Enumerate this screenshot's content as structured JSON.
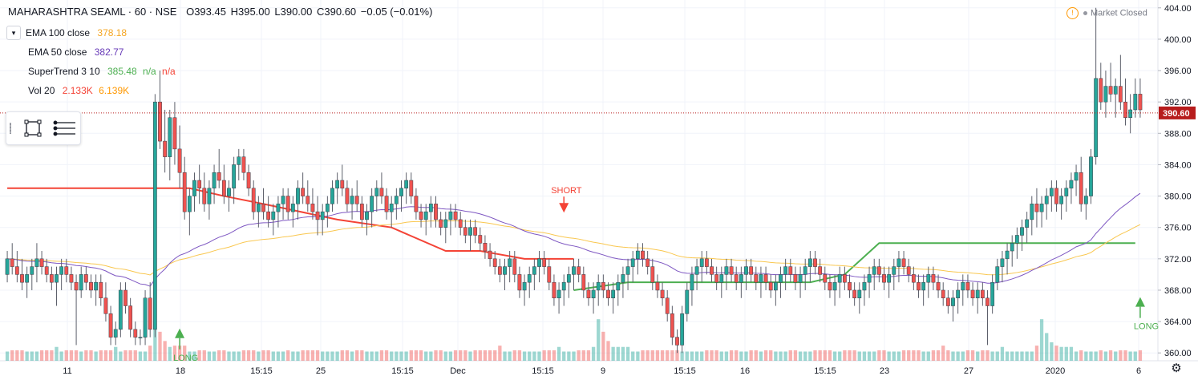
{
  "header": {
    "symbol": "MAHARASHTRA SEAML · 60 · NSE",
    "open": "O393.45",
    "high": "H395.00",
    "low": "L390.00",
    "close": "C390.60",
    "change": "−0.05 (−0.01%)"
  },
  "indicators": [
    {
      "label": "EMA 100 close",
      "value": "378.18",
      "color": "#f5a623"
    },
    {
      "label": "EMA 50 close",
      "value": "382.77",
      "color": "#673ab7"
    },
    {
      "label": "SuperTrend 3 10",
      "value": "385.48",
      "extra": "n/a",
      "extra2": "n/a",
      "color": "#4caf50",
      "color2": "#f44336"
    },
    {
      "label": "Vol 20",
      "value": "2.133K",
      "extra": "6.139K",
      "color": "#f44336",
      "color2": "#ff9800"
    }
  ],
  "market_status": "Market Closed",
  "colors": {
    "up": "#26a69a",
    "down": "#ef5350",
    "supertrend_up": "#4caf50",
    "supertrend_down": "#f44336",
    "ema50": "#7e57c2",
    "ema100": "#f9c74f",
    "price_line": "#b71c1c",
    "grid": "#f0f3fa"
  },
  "chart_data": {
    "type": "candlestick",
    "ylim": [
      359,
      405
    ],
    "y_ticks": [
      "404.00",
      "400.00",
      "396.00",
      "392.00",
      "388.00",
      "384.00",
      "380.00",
      "376.00",
      "372.00",
      "368.00",
      "364.00",
      "360.00"
    ],
    "x_ticks": [
      "11",
      "18",
      "15:15",
      "25",
      "15:15",
      "Dec",
      "15:15",
      "9",
      "15:15",
      "16",
      "15:15",
      "23",
      "27",
      "2020",
      "6"
    ],
    "last_price": "390.60",
    "annotations": [
      {
        "text": "LONG",
        "x_index": 35,
        "price": 362.5,
        "type": "long"
      },
      {
        "text": "SHORT",
        "x_index": 113,
        "price": 378.5,
        "type": "short"
      },
      {
        "text": "LONG",
        "x_index": 236,
        "price": 366.5,
        "type": "long"
      }
    ],
    "candles": [
      [
        370,
        373,
        369,
        372
      ],
      [
        372,
        374,
        370,
        371
      ],
      [
        371,
        373,
        369,
        370
      ],
      [
        370,
        372,
        368,
        369
      ],
      [
        369,
        371,
        367,
        370
      ],
      [
        370,
        372,
        368,
        371
      ],
      [
        371,
        374,
        369,
        372
      ],
      [
        372,
        373,
        370,
        371
      ],
      [
        371,
        372,
        369,
        370
      ],
      [
        370,
        371,
        368,
        369
      ],
      [
        369,
        371,
        366,
        370
      ],
      [
        370,
        372,
        368,
        371
      ],
      [
        371,
        372,
        369,
        370
      ],
      [
        370,
        371,
        368,
        369
      ],
      [
        369,
        370,
        361,
        368
      ],
      [
        368,
        371,
        367,
        370
      ],
      [
        370,
        371,
        368,
        369
      ],
      [
        369,
        370,
        367,
        368
      ],
      [
        368,
        370,
        366,
        369
      ],
      [
        369,
        370,
        366,
        367
      ],
      [
        367,
        369,
        364,
        365
      ],
      [
        365,
        366,
        361,
        362
      ],
      [
        362,
        364,
        361,
        363
      ],
      [
        363,
        369,
        362,
        368
      ],
      [
        368,
        369,
        365,
        366
      ],
      [
        366,
        367,
        362,
        363
      ],
      [
        363,
        364,
        361,
        362
      ],
      [
        362,
        363,
        361,
        362
      ],
      [
        362,
        368,
        361,
        367
      ],
      [
        367,
        369,
        362,
        363
      ],
      [
        363,
        393,
        362,
        392
      ],
      [
        392,
        396,
        386,
        387
      ],
      [
        387,
        391,
        383,
        385
      ],
      [
        385,
        391,
        382,
        390
      ],
      [
        390,
        392,
        384,
        386
      ],
      [
        386,
        389,
        381,
        383
      ],
      [
        383,
        385,
        377,
        378
      ],
      [
        378,
        381,
        375,
        380
      ],
      [
        380,
        383,
        378,
        382
      ],
      [
        382,
        384,
        379,
        381
      ],
      [
        381,
        383,
        378,
        379
      ],
      [
        379,
        382,
        377,
        381
      ],
      [
        381,
        384,
        379,
        383
      ],
      [
        383,
        386,
        381,
        382
      ],
      [
        382,
        384,
        379,
        380
      ],
      [
        380,
        382,
        378,
        381
      ],
      [
        381,
        385,
        379,
        384
      ],
      [
        384,
        386,
        382,
        385
      ],
      [
        385,
        386,
        382,
        383
      ],
      [
        383,
        384,
        380,
        381
      ],
      [
        381,
        382,
        377,
        378
      ],
      [
        378,
        380,
        376,
        379
      ],
      [
        379,
        381,
        377,
        378
      ],
      [
        378,
        380,
        376,
        377
      ],
      [
        377,
        379,
        375,
        378
      ],
      [
        378,
        380,
        376,
        379
      ],
      [
        379,
        381,
        377,
        380
      ],
      [
        380,
        381,
        377,
        378
      ],
      [
        378,
        380,
        376,
        379
      ],
      [
        379,
        382,
        377,
        381
      ],
      [
        381,
        383,
        379,
        380
      ],
      [
        380,
        382,
        378,
        379
      ],
      [
        379,
        381,
        377,
        378
      ],
      [
        378,
        380,
        375,
        377
      ],
      [
        377,
        379,
        375,
        378
      ],
      [
        378,
        380,
        376,
        379
      ],
      [
        379,
        382,
        378,
        381
      ],
      [
        381,
        383,
        379,
        382
      ],
      [
        382,
        384,
        380,
        381
      ],
      [
        381,
        382,
        378,
        379
      ],
      [
        379,
        381,
        377,
        380
      ],
      [
        380,
        382,
        378,
        379
      ],
      [
        379,
        380,
        376,
        377
      ],
      [
        377,
        379,
        375,
        378
      ],
      [
        378,
        381,
        376,
        380
      ],
      [
        380,
        382,
        378,
        381
      ],
      [
        381,
        383,
        379,
        380
      ],
      [
        380,
        381,
        377,
        378
      ],
      [
        378,
        380,
        376,
        379
      ],
      [
        379,
        381,
        377,
        380
      ],
      [
        380,
        382,
        378,
        381
      ],
      [
        381,
        383,
        379,
        382
      ],
      [
        382,
        383,
        379,
        380
      ],
      [
        380,
        381,
        377,
        378
      ],
      [
        378,
        379,
        376,
        377
      ],
      [
        377,
        379,
        375,
        378
      ],
      [
        378,
        380,
        376,
        379
      ],
      [
        379,
        380,
        376,
        377
      ],
      [
        377,
        378,
        375,
        376
      ],
      [
        376,
        378,
        374,
        377
      ],
      [
        377,
        379,
        375,
        378
      ],
      [
        378,
        379,
        376,
        377
      ],
      [
        377,
        378,
        375,
        376
      ],
      [
        376,
        377,
        374,
        375
      ],
      [
        375,
        377,
        373,
        376
      ],
      [
        376,
        377,
        374,
        375
      ],
      [
        375,
        376,
        373,
        374
      ],
      [
        374,
        375,
        372,
        373
      ],
      [
        373,
        374,
        371,
        372
      ],
      [
        372,
        373,
        370,
        371
      ],
      [
        371,
        372,
        369,
        370
      ],
      [
        370,
        372,
        368,
        371
      ],
      [
        371,
        373,
        369,
        372
      ],
      [
        372,
        373,
        369,
        370
      ],
      [
        370,
        371,
        367,
        368
      ],
      [
        368,
        370,
        366,
        369
      ],
      [
        369,
        371,
        367,
        370
      ],
      [
        370,
        372,
        368,
        371
      ],
      [
        371,
        373,
        369,
        372
      ],
      [
        372,
        373,
        370,
        371
      ],
      [
        371,
        372,
        368,
        369
      ],
      [
        369,
        370,
        366,
        367
      ],
      [
        367,
        369,
        365,
        368
      ],
      [
        368,
        370,
        366,
        369
      ],
      [
        369,
        371,
        367,
        370
      ],
      [
        370,
        372,
        368,
        371
      ],
      [
        371,
        372,
        369,
        370
      ],
      [
        370,
        371,
        367,
        368
      ],
      [
        368,
        369,
        366,
        367
      ],
      [
        367,
        369,
        365,
        368
      ],
      [
        368,
        370,
        366,
        369
      ],
      [
        369,
        370,
        367,
        368
      ],
      [
        368,
        369,
        366,
        367
      ],
      [
        367,
        369,
        365,
        368
      ],
      [
        368,
        370,
        366,
        369
      ],
      [
        369,
        371,
        367,
        370
      ],
      [
        370,
        372,
        368,
        371
      ],
      [
        371,
        373,
        369,
        372
      ],
      [
        372,
        374,
        370,
        373
      ],
      [
        373,
        374,
        371,
        372
      ],
      [
        372,
        373,
        370,
        371
      ],
      [
        371,
        372,
        368,
        369
      ],
      [
        369,
        370,
        367,
        368
      ],
      [
        368,
        369,
        366,
        367
      ],
      [
        367,
        368,
        364,
        365
      ],
      [
        365,
        366,
        361,
        362
      ],
      [
        362,
        363,
        360,
        361
      ],
      [
        361,
        366,
        360,
        365
      ],
      [
        365,
        369,
        364,
        368
      ],
      [
        368,
        371,
        366,
        370
      ],
      [
        370,
        372,
        368,
        371
      ],
      [
        371,
        373,
        369,
        372
      ],
      [
        372,
        373,
        370,
        371
      ],
      [
        371,
        372,
        369,
        370
      ],
      [
        370,
        371,
        368,
        369
      ],
      [
        369,
        371,
        367,
        370
      ],
      [
        370,
        372,
        368,
        371
      ],
      [
        371,
        372,
        369,
        370
      ],
      [
        370,
        371,
        368,
        369
      ],
      [
        369,
        371,
        367,
        370
      ],
      [
        370,
        372,
        368,
        371
      ],
      [
        371,
        372,
        369,
        370
      ],
      [
        370,
        371,
        368,
        369
      ],
      [
        369,
        371,
        367,
        370
      ],
      [
        370,
        371,
        368,
        369
      ],
      [
        369,
        370,
        367,
        368
      ],
      [
        368,
        370,
        366,
        369
      ],
      [
        369,
        371,
        367,
        370
      ],
      [
        370,
        372,
        368,
        371
      ],
      [
        371,
        372,
        369,
        370
      ],
      [
        370,
        371,
        368,
        369
      ],
      [
        369,
        371,
        367,
        370
      ],
      [
        370,
        372,
        368,
        371
      ],
      [
        371,
        373,
        369,
        372
      ],
      [
        372,
        373,
        370,
        371
      ],
      [
        371,
        372,
        369,
        370
      ],
      [
        370,
        371,
        368,
        369
      ],
      [
        369,
        370,
        367,
        368
      ],
      [
        368,
        370,
        366,
        369
      ],
      [
        369,
        371,
        367,
        370
      ],
      [
        370,
        371,
        368,
        369
      ],
      [
        369,
        370,
        367,
        368
      ],
      [
        368,
        369,
        366,
        367
      ],
      [
        367,
        369,
        365,
        368
      ],
      [
        368,
        370,
        366,
        369
      ],
      [
        369,
        371,
        367,
        370
      ],
      [
        370,
        372,
        368,
        371
      ],
      [
        371,
        372,
        369,
        370
      ],
      [
        370,
        371,
        368,
        369
      ],
      [
        369,
        371,
        367,
        370
      ],
      [
        370,
        372,
        368,
        371
      ],
      [
        371,
        373,
        369,
        372
      ],
      [
        372,
        373,
        370,
        371
      ],
      [
        371,
        372,
        369,
        370
      ],
      [
        370,
        371,
        368,
        369
      ],
      [
        369,
        370,
        367,
        368
      ],
      [
        368,
        370,
        366,
        369
      ],
      [
        369,
        371,
        367,
        370
      ],
      [
        370,
        371,
        368,
        369
      ],
      [
        369,
        370,
        367,
        368
      ],
      [
        368,
        369,
        366,
        367
      ],
      [
        367,
        368,
        365,
        366
      ],
      [
        366,
        368,
        364,
        367
      ],
      [
        367,
        369,
        365,
        368
      ],
      [
        368,
        370,
        366,
        369
      ],
      [
        369,
        370,
        367,
        368
      ],
      [
        368,
        369,
        366,
        367
      ],
      [
        367,
        369,
        365,
        368
      ],
      [
        368,
        369,
        366,
        367
      ],
      [
        367,
        368,
        361,
        366
      ],
      [
        366,
        370,
        365,
        369
      ],
      [
        369,
        372,
        368,
        371
      ],
      [
        371,
        373,
        369,
        372
      ],
      [
        372,
        374,
        370,
        373
      ],
      [
        373,
        375,
        371,
        374
      ],
      [
        374,
        376,
        372,
        375
      ],
      [
        375,
        377,
        373,
        376
      ],
      [
        376,
        378,
        374,
        377
      ],
      [
        377,
        380,
        375,
        379
      ],
      [
        379,
        381,
        376,
        378
      ],
      [
        378,
        380,
        376,
        379
      ],
      [
        379,
        381,
        377,
        380
      ],
      [
        380,
        382,
        378,
        381
      ],
      [
        381,
        382,
        378,
        379
      ],
      [
        379,
        381,
        377,
        380
      ],
      [
        380,
        382,
        378,
        381
      ],
      [
        381,
        383,
        379,
        382
      ],
      [
        382,
        384,
        380,
        383
      ],
      [
        383,
        385,
        378,
        379
      ],
      [
        379,
        381,
        377,
        380
      ],
      [
        380,
        386,
        379,
        385
      ],
      [
        385,
        404,
        384,
        395
      ],
      [
        395,
        397,
        391,
        392
      ],
      [
        392,
        396,
        390,
        394
      ],
      [
        394,
        397,
        392,
        393
      ],
      [
        393,
        395,
        390,
        394
      ],
      [
        394,
        398,
        391,
        392
      ],
      [
        392,
        395,
        389,
        390
      ],
      [
        390,
        393,
        388,
        391
      ],
      [
        391,
        395,
        390,
        393
      ],
      [
        393,
        395,
        390,
        391
      ]
    ],
    "supertrend_down": [
      [
        0,
        381
      ],
      [
        20,
        381
      ],
      [
        24,
        380
      ],
      [
        28,
        379
      ],
      [
        36,
        377
      ],
      [
        42,
        376
      ],
      [
        48,
        373
      ],
      [
        52,
        373
      ],
      [
        57,
        372
      ],
      [
        62,
        372
      ]
    ],
    "supertrend_up": [
      [
        62,
        368
      ],
      [
        68,
        369
      ],
      [
        75,
        369
      ],
      [
        82,
        369
      ],
      [
        88,
        369
      ],
      [
        92,
        370
      ],
      [
        96,
        374
      ],
      [
        100,
        374
      ],
      [
        104,
        374
      ],
      [
        108,
        374
      ],
      [
        112,
        374
      ],
      [
        116,
        374
      ],
      [
        120,
        374
      ],
      [
        124,
        374
      ]
    ],
    "volume": [
      2,
      2,
      2,
      2,
      2,
      2,
      2,
      2,
      2,
      2,
      3,
      2,
      2,
      2,
      2,
      2,
      2,
      2,
      2,
      2,
      2,
      2,
      3,
      2,
      2,
      2,
      2,
      2,
      2,
      3,
      9,
      6,
      4,
      3,
      3,
      3,
      3,
      2,
      2,
      2,
      2,
      2,
      2,
      2,
      2,
      2,
      2,
      2,
      2,
      2,
      2,
      2,
      2,
      2,
      2,
      2,
      2,
      2,
      2,
      2,
      2,
      2,
      2,
      2,
      2,
      2,
      2,
      2,
      2,
      2,
      2,
      2,
      2,
      2,
      2,
      2,
      2,
      2,
      2,
      2,
      2,
      2,
      2,
      2,
      2,
      2,
      2,
      2,
      2,
      2
    ]
  }
}
